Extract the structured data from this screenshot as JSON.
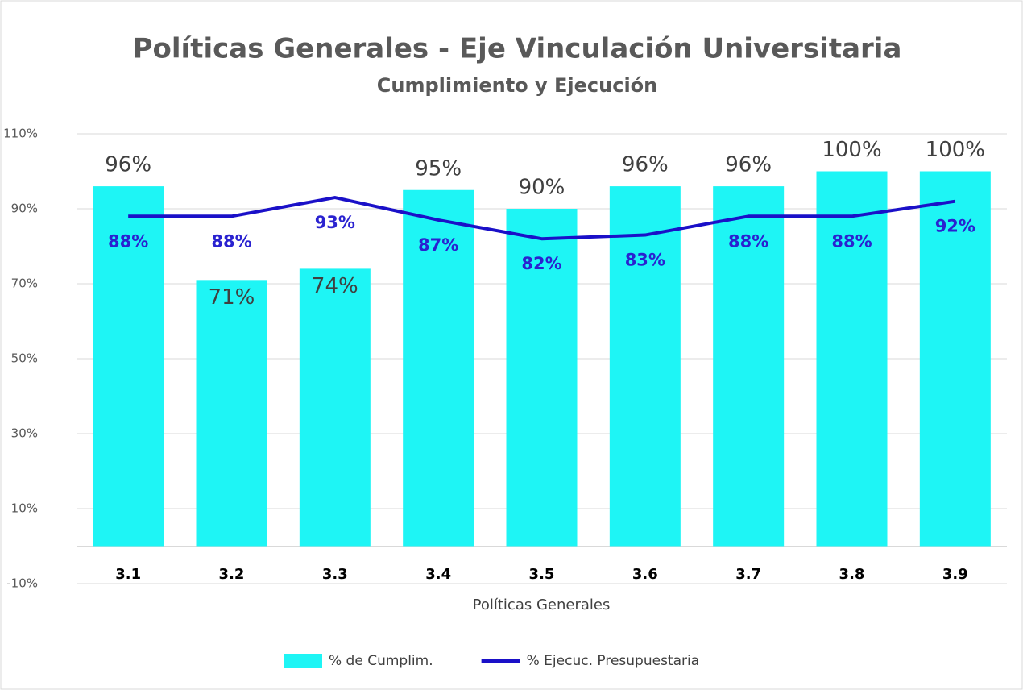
{
  "chart_data": {
    "type": "bar",
    "title": "Políticas Generales - Eje Vinculación Universitaria",
    "subtitle": "Cumplimiento y Ejecución",
    "x_label": "Políticas Generales",
    "categories": [
      "3.1",
      "3.2",
      "3.3",
      "3.4",
      "3.5",
      "3.6",
      "3.7",
      "3.8",
      "3.9"
    ],
    "series": [
      {
        "name": "% de Cumplim.",
        "type": "bar",
        "color": "#1ef5f5",
        "values": [
          96,
          71,
          74,
          95,
          90,
          96,
          96,
          100,
          100
        ],
        "value_labels": [
          "96%",
          "71%",
          "74%",
          "95%",
          "90%",
          "96%",
          "96%",
          "100%",
          "100%"
        ]
      },
      {
        "name": "% Ejecuc. Presupuestaria",
        "type": "line",
        "color": "#1a10c8",
        "values": [
          88,
          88,
          93,
          87,
          82,
          83,
          88,
          88,
          92
        ],
        "value_labels": [
          "88%",
          "88%",
          "93%",
          "87%",
          "82%",
          "83%",
          "88%",
          "88%",
          "92%"
        ]
      }
    ],
    "ylim": [
      -10,
      110
    ],
    "yticks": [
      {
        "value": -10,
        "label": "-10%"
      },
      {
        "value": 10,
        "label": "10%"
      },
      {
        "value": 30,
        "label": "30%"
      },
      {
        "value": 50,
        "label": "50%"
      },
      {
        "value": 70,
        "label": "70%"
      },
      {
        "value": 90,
        "label": "90%"
      },
      {
        "value": 110,
        "label": "110%"
      }
    ],
    "grid": true,
    "legend": "bottom"
  }
}
